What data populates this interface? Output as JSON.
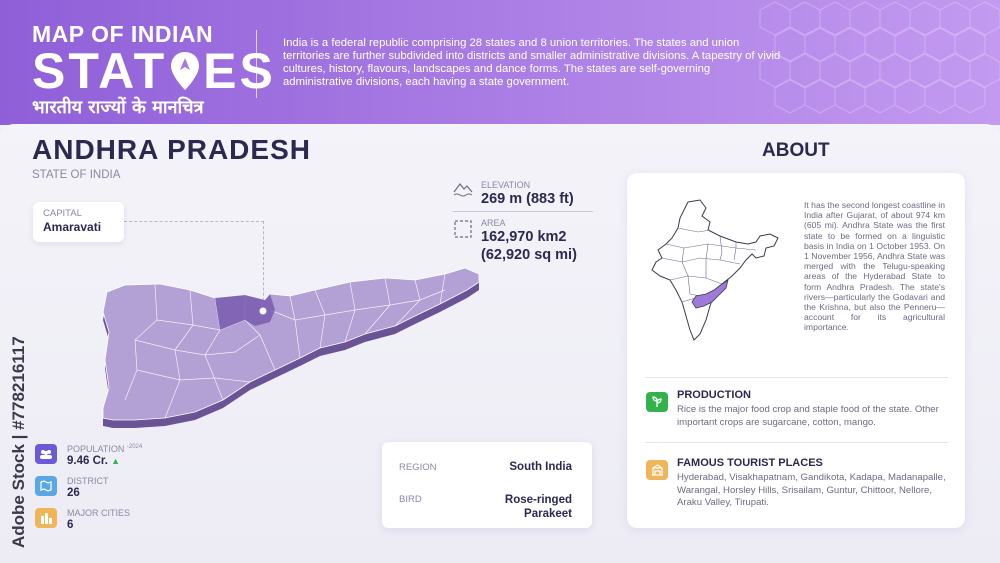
{
  "header": {
    "title_line1": "MAP OF INDIAN",
    "title_line2_part1": "STAT",
    "title_line2_part2": "ES",
    "title_hindi": "भारतीय राज्यों के मानचित्र",
    "description": "India is a federal republic comprising 28 states and 8 union territories. The states and union territories are further subdivided into districts and smaller administrative divisions. A tapestry of vivid cultures, history, flavours, landscapes and dance forms. The states are self-governing administrative divisions, each having a state government."
  },
  "state": {
    "name": "ANDHRA PRADESH",
    "subtitle": "STATE OF INDIA",
    "capital_label": "CAPITAL",
    "capital": "Amaravati"
  },
  "stats": {
    "elevation_label": "ELEVATION",
    "elevation": "269 m (883 ft)",
    "area_label": "AREA",
    "area_line1": "162,970 km2",
    "area_line2": "(62,920 sq mi)"
  },
  "kpis": {
    "population_label": "POPULATION",
    "population_year": "-2024",
    "population": "9.46 Cr.",
    "district_label": "DISTRICT",
    "district": "26",
    "cities_label": "MAJOR CITIES",
    "cities": "6"
  },
  "facts": {
    "region_label": "REGION",
    "region": "South India",
    "bird_label": "BIRD",
    "bird_line1": "Rose-ringed",
    "bird_line2": "Parakeet"
  },
  "about": {
    "title": "ABOUT",
    "text": "It has the second longest coastline in India after Gujarat, of about 974 km (605 mi). Andhra State was the first state to be formed on a linguistic basis in India on 1 October 1953. On 1 November 1956, Andhra State was merged with the Telugu-speaking areas of the Hyderabad State to form Andhra Pradesh. The state's rivers—particularly the Godavari and the Krishna, but also the Penneru—account for its agricultural importance.",
    "production_title": "PRODUCTION",
    "production_text": "Rice is the major food crop and staple food of the state. Other important crops are sugarcane, cotton, mango.",
    "tourist_title": "FAMOUS TOURIST PLACES",
    "tourist_text": "Hyderabad, Visakhapatnam, Gandikota, Kadapa, Madanapalle, Warangal, Horsley Hills, Srisailam, Guntur, Chittoor, Nellore, Araku Valley, Tirupati."
  },
  "watermark": "Adobe Stock | #778216117",
  "colors": {
    "header_start": "#8f5fd8",
    "header_end": "#c39af0",
    "map_fill": "#b3a0d4",
    "map_side": "#6b5496",
    "highlight": "#7a5bb0",
    "population_icon": "#6b5ad6",
    "district_icon": "#5aa7e6",
    "cities_icon": "#f0b45a",
    "production_icon": "#33b24c",
    "tourist_icon": "#f0b45a"
  }
}
